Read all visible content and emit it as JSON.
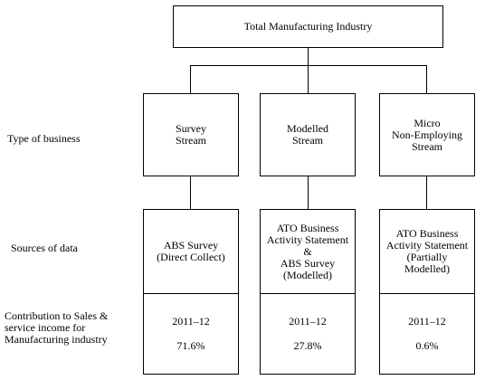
{
  "top": {
    "title": "Total Manufacturing Industry"
  },
  "row_labels": {
    "type": "Type of business",
    "sources": "Sources of data",
    "contribution": [
      "Contribution to Sales &",
      "service income for",
      "Manufacturing industry"
    ]
  },
  "streams": [
    {
      "type_lines": [
        "Survey",
        "Stream"
      ],
      "source_lines": [
        "ABS Survey",
        "(Direct Collect)"
      ],
      "year": "2011–12",
      "share": "71.6%"
    },
    {
      "type_lines": [
        "Modelled",
        "Stream"
      ],
      "source_lines": [
        "ATO Business",
        "Activity Statement",
        "&",
        "ABS Survey",
        "(Modelled)"
      ],
      "year": "2011–12",
      "share": "27.8%"
    },
    {
      "type_lines": [
        "Micro",
        "Non-Employing",
        "Stream"
      ],
      "source_lines": [
        "ATO Business",
        "Activity Statement",
        "(Partially",
        "Modelled)"
      ],
      "year": "2011–12",
      "share": "0.6%"
    }
  ]
}
